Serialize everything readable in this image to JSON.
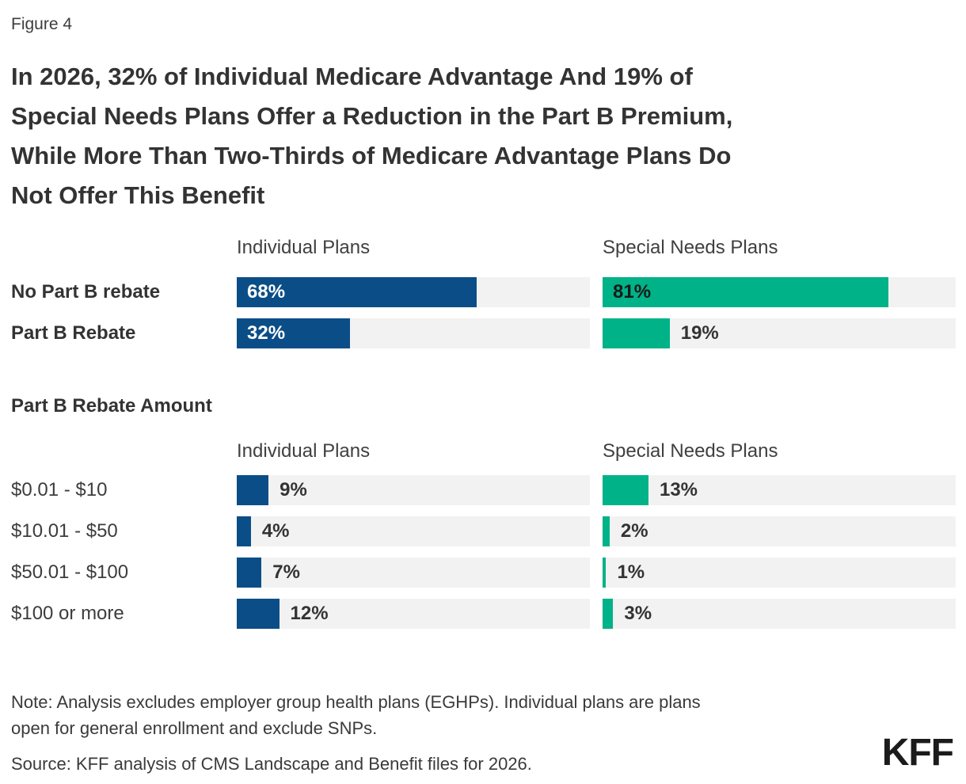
{
  "figure_label": "Figure 4",
  "title_lines": [
    "In 2026, 32% of Individual Medicare Advantage And 19% of",
    "Special Needs Plans Offer a Reduction in the Part B Premium,",
    "While More Than Two-Thirds of Medicare Advantage Plans Do",
    "Not Offer This Benefit"
  ],
  "section_heading": "Part B Rebate Amount",
  "colors": {
    "individual_blue": "#0B4E87",
    "snp_green": "#00B287",
    "track_gray": "#F2F2F2",
    "inside_light_label": "#FFFFFF",
    "inside_dark_label": "#1A1A1A",
    "outside_label": "#333333"
  },
  "chart_data": [
    {
      "type": "bar",
      "orientation": "horizontal",
      "xlim": [
        0,
        100
      ],
      "grid": false,
      "bold_labels": true,
      "columns": [
        "Individual Plans",
        "Special Needs Plans"
      ],
      "categories": [
        "No Part B rebate",
        "Part B Rebate"
      ],
      "series": [
        {
          "name": "Individual Plans",
          "color": "#0B4E87",
          "values": [
            68,
            32
          ]
        },
        {
          "name": "Special Needs Plans",
          "color": "#00B287",
          "values": [
            81,
            19
          ]
        }
      ],
      "rows": [
        {
          "label": "No Part B rebate",
          "cells": [
            {
              "value": 68,
              "label": "68%",
              "placement": "inside",
              "label_color": "#FFFFFF"
            },
            {
              "value": 81,
              "label": "81%",
              "placement": "inside",
              "label_color": "#1A1A1A"
            }
          ]
        },
        {
          "label": "Part B Rebate",
          "cells": [
            {
              "value": 32,
              "label": "32%",
              "placement": "inside",
              "label_color": "#FFFFFF"
            },
            {
              "value": 19,
              "label": "19%",
              "placement": "outside",
              "label_color": "#333333"
            }
          ]
        }
      ]
    },
    {
      "type": "bar",
      "orientation": "horizontal",
      "xlim": [
        0,
        100
      ],
      "grid": false,
      "bold_labels": false,
      "title": "Part B Rebate Amount",
      "columns": [
        "Individual Plans",
        "Special Needs Plans"
      ],
      "categories": [
        "$0.01 - $10",
        "$10.01 - $50",
        "$50.01 - $100",
        "$100 or more"
      ],
      "series": [
        {
          "name": "Individual Plans",
          "color": "#0B4E87",
          "values": [
            9,
            4,
            7,
            12
          ]
        },
        {
          "name": "Special Needs Plans",
          "color": "#00B287",
          "values": [
            13,
            2,
            1,
            3
          ]
        }
      ],
      "rows": [
        {
          "label": "$0.01 - $10",
          "cells": [
            {
              "value": 9,
              "label": "9%",
              "placement": "outside",
              "label_color": "#333333"
            },
            {
              "value": 13,
              "label": "13%",
              "placement": "outside",
              "label_color": "#333333"
            }
          ]
        },
        {
          "label": "$10.01 - $50",
          "cells": [
            {
              "value": 4,
              "label": "4%",
              "placement": "outside",
              "label_color": "#333333"
            },
            {
              "value": 2,
              "label": "2%",
              "placement": "outside",
              "label_color": "#333333"
            }
          ]
        },
        {
          "label": "$50.01 - $100",
          "cells": [
            {
              "value": 7,
              "label": "7%",
              "placement": "outside",
              "label_color": "#333333"
            },
            {
              "value": 1,
              "label": "1%",
              "placement": "outside",
              "label_color": "#333333"
            }
          ]
        },
        {
          "label": "$100 or more",
          "cells": [
            {
              "value": 12,
              "label": "12%",
              "placement": "outside",
              "label_color": "#333333"
            },
            {
              "value": 3,
              "label": "3%",
              "placement": "outside",
              "label_color": "#333333"
            }
          ]
        }
      ]
    }
  ],
  "footer": {
    "note_lines": [
      "Note: Analysis excludes employer group health plans (EGHPs). Individual plans are plans",
      "open for general enrollment and exclude SNPs."
    ],
    "source": "Source: KFF analysis of CMS Landscape and Benefit files for 2026.",
    "logo": "KFF"
  }
}
